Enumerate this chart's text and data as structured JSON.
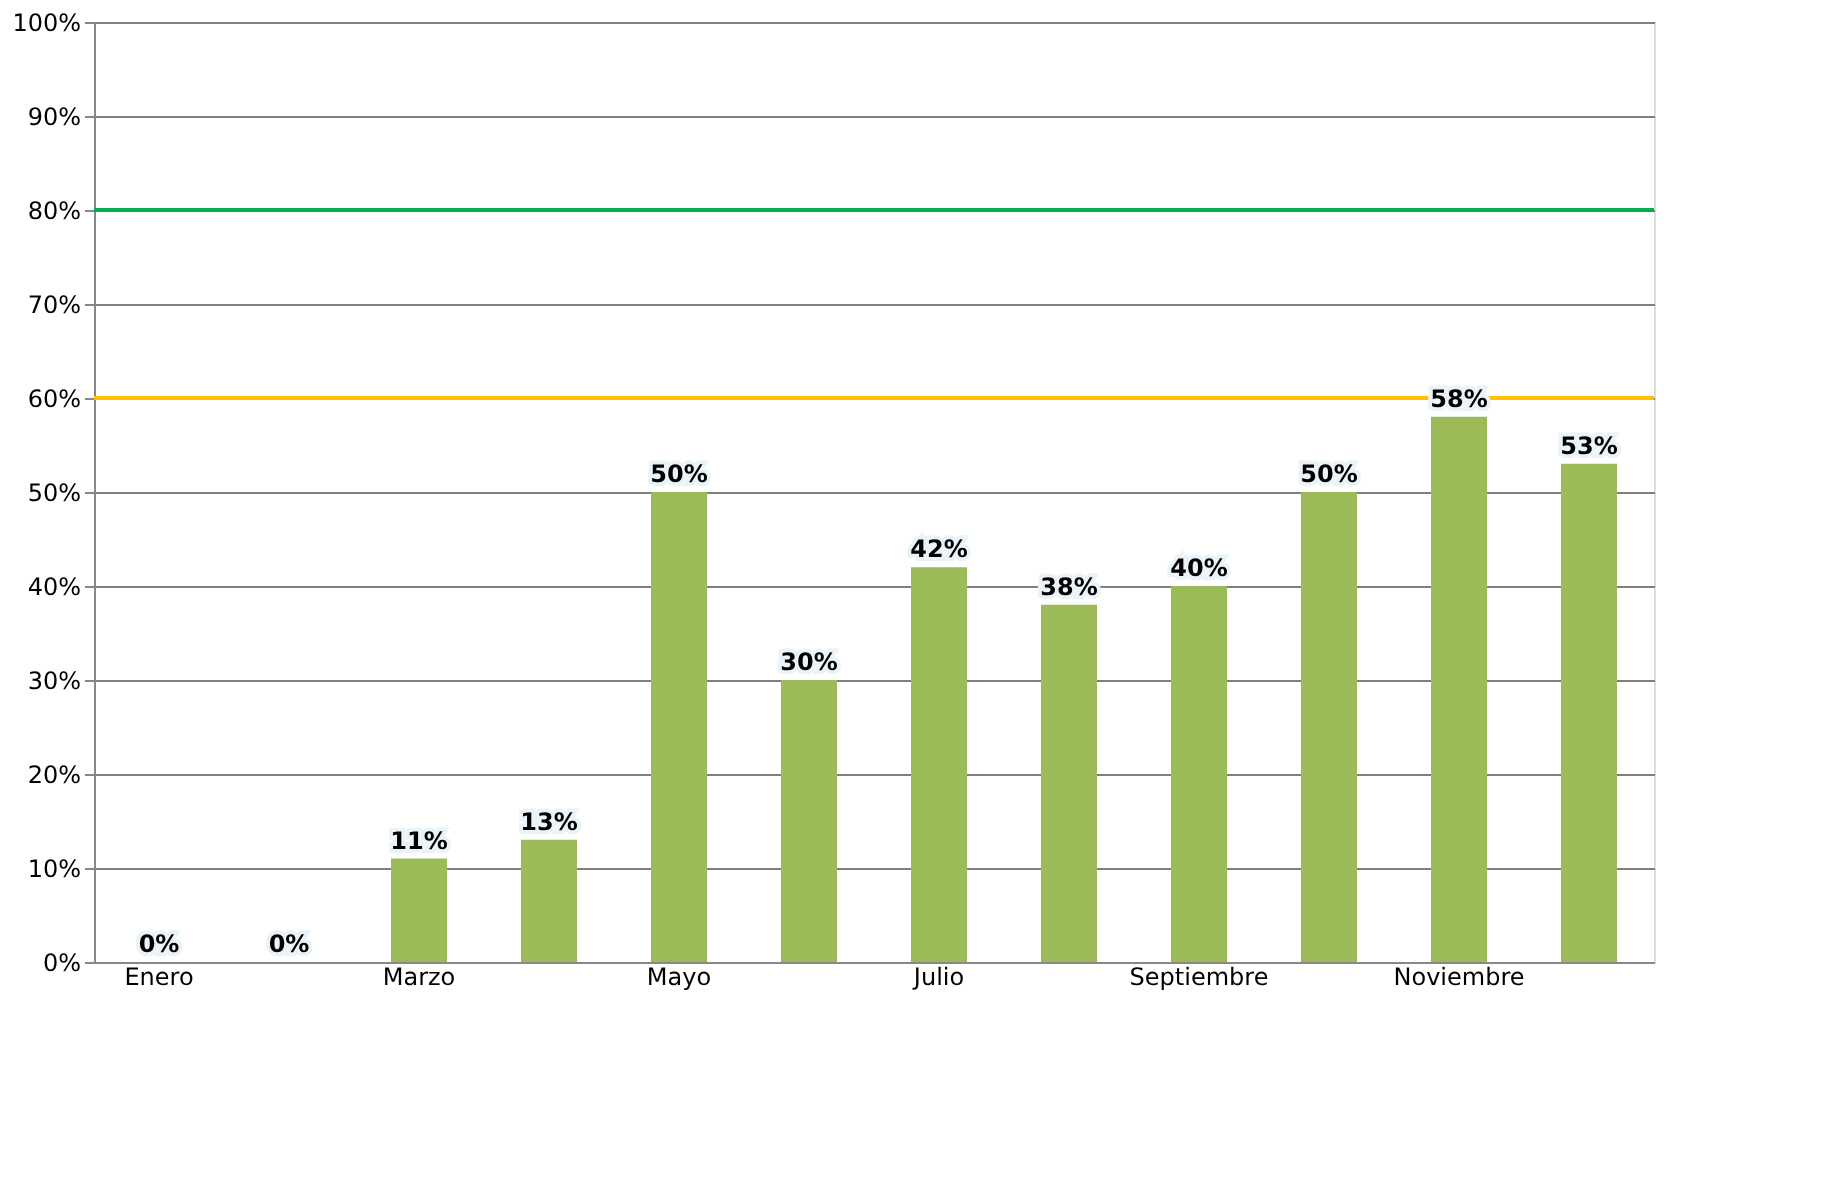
{
  "chart_data": {
    "type": "bar",
    "categories": [
      "Enero",
      null,
      "Marzo",
      null,
      "Mayo",
      null,
      "Julio",
      null,
      "Septiembre",
      null,
      "Noviembre",
      null
    ],
    "values": [
      0,
      0,
      11,
      13,
      50,
      30,
      42,
      38,
      40,
      50,
      58,
      53
    ],
    "color": "#9bbb59",
    "value_labels": [
      "0%",
      "0%",
      "11%",
      "13%",
      "50%",
      "30%",
      "42%",
      "38%",
      "40%",
      "50%",
      "58%",
      "53%"
    ],
    "ylim": [
      0,
      100
    ],
    "yticks": [
      {
        "value": 0,
        "label": "0%"
      },
      {
        "value": 10,
        "label": "10%"
      },
      {
        "value": 20,
        "label": "20%"
      },
      {
        "value": 30,
        "label": "30%"
      },
      {
        "value": 40,
        "label": "40%"
      },
      {
        "value": 50,
        "label": "50%"
      },
      {
        "value": 60,
        "label": "60%"
      },
      {
        "value": 70,
        "label": "70%"
      },
      {
        "value": 80,
        "label": "80%"
      },
      {
        "value": 90,
        "label": "90%"
      },
      {
        "value": 100,
        "label": "100%"
      }
    ],
    "ref_lines": [
      {
        "axis": "y",
        "value": 80,
        "label": null,
        "color": "#00b050"
      },
      {
        "axis": "y",
        "value": 60,
        "label": null,
        "color": "#ffc000"
      }
    ],
    "grid": "y"
  }
}
